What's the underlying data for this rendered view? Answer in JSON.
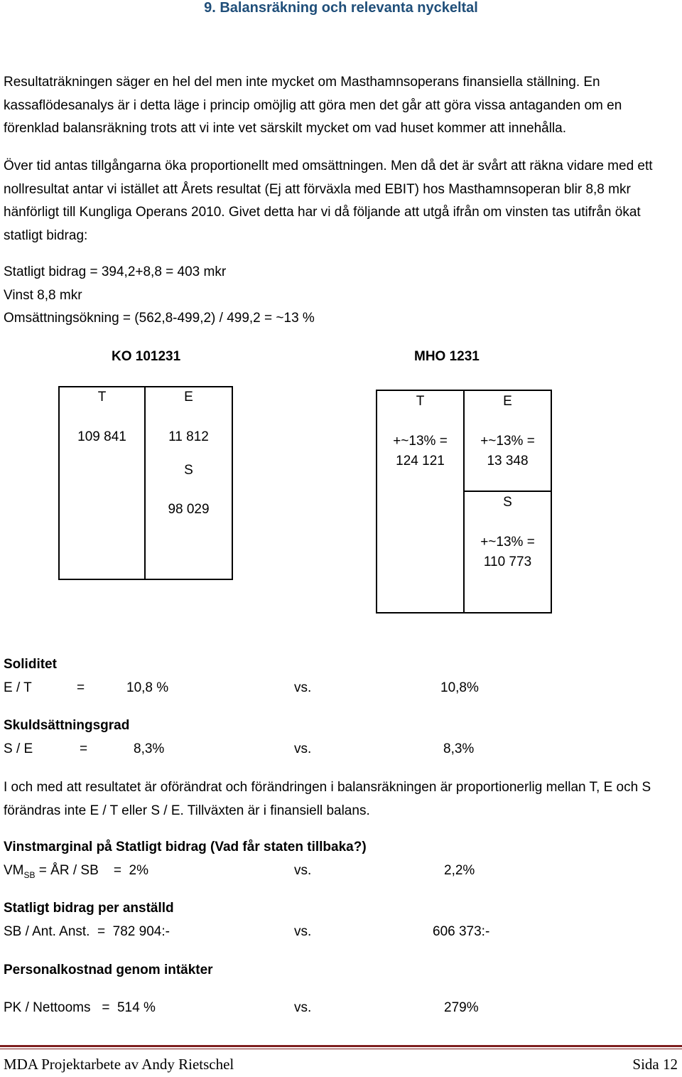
{
  "heading": "9. Balansräkning och relevanta nyckeltal",
  "paragraphs": {
    "p1": "Resultaträkningen säger en hel del men inte mycket om Masthamnsoperans finansiella ställning. En kassaflödesanalys är i detta läge i princip omöjlig att göra men det går att göra vissa antaganden om en förenklad balansräkning trots att vi inte vet särskilt mycket om vad huset kommer att innehålla.",
    "p2": "Över tid antas tillgångarna öka proportionellt med omsättningen. Men då det är svårt att räkna vidare med ett nollresultat antar vi istället att Årets resultat (Ej att förväxla med EBIT) hos Masthamnsoperan blir 8,8 mkr hänförligt till Kungliga Operans 2010. Givet detta har vi då följande att utgå ifrån om vinsten tas utifrån ökat statligt bidrag:"
  },
  "assumptions": [
    "Statligt bidrag = 394,2+8,8 = 403 mkr",
    "Vinst 8,8 mkr",
    "Omsättningsökning = (562,8-499,2) / 499,2 = ~13 %"
  ],
  "ko": {
    "title": "KO 101231",
    "t_label": "T",
    "e_label": "E",
    "t_value": "109 841",
    "e_value": "11 812",
    "s_label": "S",
    "s_value": "98 029"
  },
  "mho": {
    "title": "MHO 1231",
    "t_label": "T",
    "e_label": "E",
    "t_line1": "+~13% =",
    "t_line2": "124 121",
    "e_line1": "+~13% =",
    "e_line2": "13 348",
    "s_label": "S",
    "s_line1": "+~13% =",
    "s_line2": "110 773"
  },
  "ratios": {
    "soliditet": {
      "title": "Soliditet",
      "formula": "E / T",
      "eq": "=",
      "value": "10,8 %",
      "vs": "vs.",
      "compare": "10,8%"
    },
    "skuld": {
      "title": "Skuldsättningsgrad",
      "formula": "S / E",
      "eq": "=",
      "value": "8,3%",
      "vs": "vs.",
      "compare": "8,3%"
    },
    "balance_text": "I och med att resultatet är oförändrat och förändringen i balansräkningen är proportionerlig mellan T, E och S förändras inte E / T eller S / E. Tillväxten är i finansiell balans.",
    "vinstmarginal": {
      "title": "Vinstmarginal på Statligt bidrag (Vad får staten tillbaka?)",
      "formula_main": "VM",
      "formula_sub": "SB",
      "formula_rest": " = ÅR / SB    =  2%",
      "vs": "vs.",
      "compare": "2,2%"
    },
    "per_anstalld": {
      "title": "Statligt bidrag per anställd",
      "formula": "SB / Ant. Anst.  =  782 904:-",
      "vs": "vs.",
      "compare": "606 373:-"
    },
    "personal": {
      "title": "Personalkostnad genom intäkter",
      "formula": "PK / Nettooms   =  514 %",
      "vs": "vs.",
      "compare": "279%"
    }
  },
  "footer": {
    "left": "MDA Projektarbete av Andy Rietschel",
    "right": "Sida 12"
  }
}
